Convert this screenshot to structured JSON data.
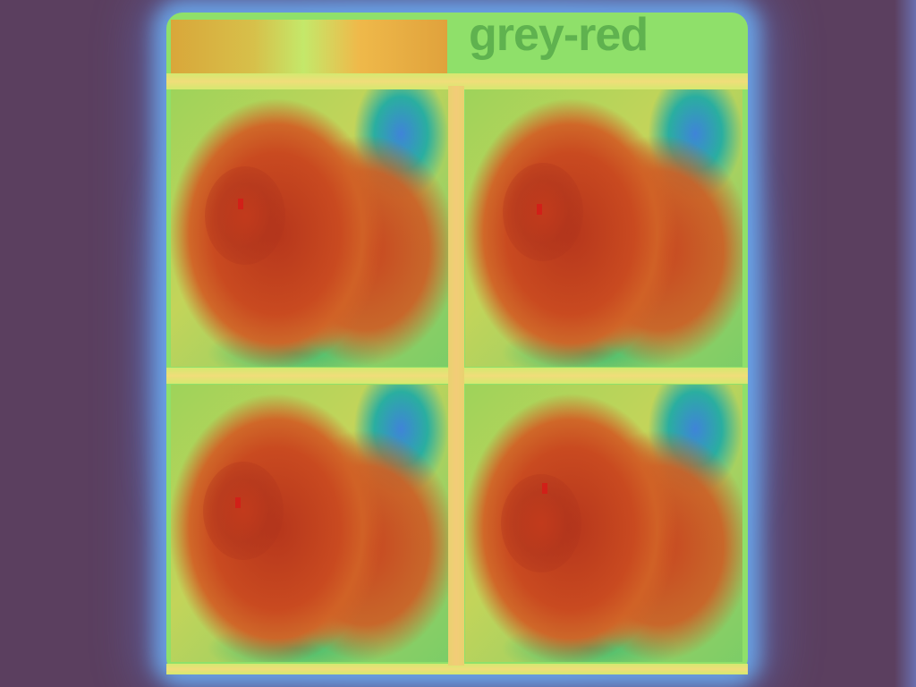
{
  "colorbar": {
    "label": "grey-red"
  },
  "heatmaps": [
    {
      "position": "top-left"
    },
    {
      "position": "top-right"
    },
    {
      "position": "bottom-left"
    },
    {
      "position": "bottom-right"
    }
  ],
  "colors": {
    "background": "#5b3f5f",
    "hot": "#c94a20",
    "cool": "#3f84d8",
    "mid": "#9ed35a",
    "label": "#5fb24f"
  }
}
